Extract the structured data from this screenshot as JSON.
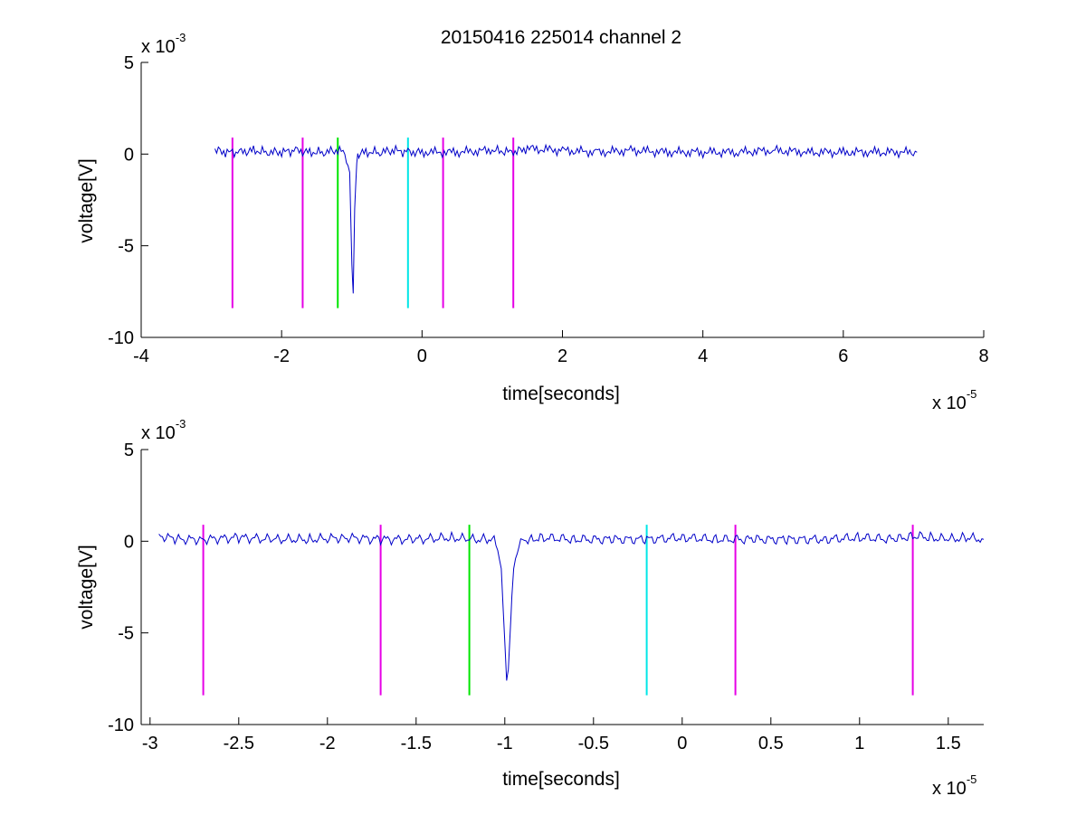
{
  "chart_data": [
    {
      "type": "line",
      "title": "20150416 225014 channel 2",
      "xlabel": "time[seconds]",
      "ylabel": "voltage[V]",
      "x_multiplier": "x 10",
      "x_exponent": "-5",
      "y_multiplier": "x 10",
      "y_exponent": "-3",
      "xlim": [
        -4,
        8
      ],
      "ylim": [
        -10,
        5
      ],
      "xticks": [
        -4,
        -2,
        0,
        2,
        4,
        6,
        8
      ],
      "xtick_labels": [
        "-4",
        "-2",
        "0",
        "2",
        "4",
        "6",
        "8"
      ],
      "yticks": [
        -10,
        -5,
        0,
        5
      ],
      "ytick_labels": [
        "-10",
        "-5",
        "0",
        "5"
      ],
      "grid": false,
      "series": [
        {
          "color": "#0000c8",
          "x": [
            -2.95,
            -2.8,
            -2.6,
            -2.4,
            -2.2,
            -2.0,
            -1.8,
            -1.6,
            -1.4,
            -1.2,
            -1.1,
            -1.03,
            -1.0,
            -0.98,
            -0.96,
            -0.93,
            -0.9,
            -0.8,
            -0.6,
            -0.4,
            -0.2,
            0.0,
            0.5,
            1.0,
            1.3,
            1.5,
            2.0,
            2.5,
            3.0,
            3.5,
            4.0,
            4.5,
            5.0,
            5.5,
            6.0,
            6.5,
            7.05
          ],
          "y": [
            0.2,
            0.1,
            0.1,
            0.2,
            0.1,
            0.1,
            0.2,
            0.1,
            0.1,
            0.2,
            0.1,
            -1.0,
            -6.0,
            -7.6,
            -3.0,
            -0.5,
            0.0,
            0.1,
            0.1,
            0.2,
            0.1,
            0.1,
            0.1,
            0.2,
            0.1,
            0.3,
            0.2,
            0.1,
            0.2,
            0.1,
            0.1,
            0.1,
            0.2,
            0.1,
            0.1,
            0.1,
            0.1
          ]
        }
      ],
      "vlines": [
        {
          "x": -2.7,
          "color": "#e600e6",
          "y_range": [
            -8.4,
            0.9
          ]
        },
        {
          "x": -1.7,
          "color": "#e600e6",
          "y_range": [
            -8.4,
            0.9
          ]
        },
        {
          "x": -1.2,
          "color": "#00e600",
          "y_range": [
            -8.4,
            0.9
          ]
        },
        {
          "x": -0.2,
          "color": "#00e6e6",
          "y_range": [
            -8.4,
            0.9
          ]
        },
        {
          "x": 0.3,
          "color": "#e600e6",
          "y_range": [
            -8.4,
            0.9
          ]
        },
        {
          "x": 1.3,
          "color": "#e600e6",
          "y_range": [
            -8.4,
            0.9
          ]
        }
      ]
    },
    {
      "type": "line",
      "title": "",
      "xlabel": "time[seconds]",
      "ylabel": "voltage[V]",
      "x_multiplier": "x 10",
      "x_exponent": "-5",
      "y_multiplier": "x 10",
      "y_exponent": "-3",
      "xlim": [
        -3.05,
        1.7
      ],
      "ylim": [
        -10,
        5
      ],
      "xticks": [
        -3,
        -2.5,
        -2,
        -1.5,
        -1,
        -0.5,
        0,
        0.5,
        1,
        1.5
      ],
      "xtick_labels": [
        "-3",
        "-2.5",
        "-2",
        "-1.5",
        "-1",
        "-0.5",
        "0",
        "0.5",
        "1",
        "1.5"
      ],
      "yticks": [
        -10,
        -5,
        0,
        5
      ],
      "ytick_labels": [
        "-10",
        "-5",
        "0",
        "5"
      ],
      "grid": false,
      "series": [
        {
          "color": "#0000c8",
          "x": [
            -2.95,
            -2.85,
            -2.7,
            -2.5,
            -2.3,
            -2.1,
            -1.9,
            -1.7,
            -1.5,
            -1.3,
            -1.2,
            -1.1,
            -1.05,
            -1.02,
            -1.0,
            -0.99,
            -0.98,
            -0.97,
            -0.96,
            -0.95,
            -0.93,
            -0.9,
            -0.85,
            -0.8,
            -0.6,
            -0.4,
            -0.2,
            0.0,
            0.2,
            0.4,
            0.6,
            0.8,
            1.0,
            1.2,
            1.3,
            1.4,
            1.5,
            1.6,
            1.7
          ],
          "y": [
            0.3,
            0.1,
            0.1,
            0.2,
            0.1,
            0.1,
            0.2,
            0.1,
            0.1,
            0.2,
            0.1,
            0.1,
            0.0,
            -1.5,
            -5.5,
            -7.6,
            -7.0,
            -5.0,
            -3.0,
            -1.5,
            -0.4,
            0.1,
            0.1,
            0.2,
            0.1,
            0.1,
            0.1,
            0.2,
            0.1,
            0.1,
            0.1,
            0.1,
            0.2,
            0.1,
            0.3,
            0.2,
            0.1,
            0.2,
            0.1
          ]
        }
      ],
      "vlines": [
        {
          "x": -2.7,
          "color": "#e600e6",
          "y_range": [
            -8.4,
            0.9
          ]
        },
        {
          "x": -1.7,
          "color": "#e600e6",
          "y_range": [
            -8.4,
            0.9
          ]
        },
        {
          "x": -1.2,
          "color": "#00e600",
          "y_range": [
            -8.4,
            0.9
          ]
        },
        {
          "x": -0.2,
          "color": "#00e6e6",
          "y_range": [
            -8.4,
            0.9
          ]
        },
        {
          "x": 0.3,
          "color": "#e600e6",
          "y_range": [
            -8.4,
            0.9
          ]
        },
        {
          "x": 1.3,
          "color": "#e600e6",
          "y_range": [
            -8.4,
            0.9
          ]
        }
      ]
    }
  ]
}
